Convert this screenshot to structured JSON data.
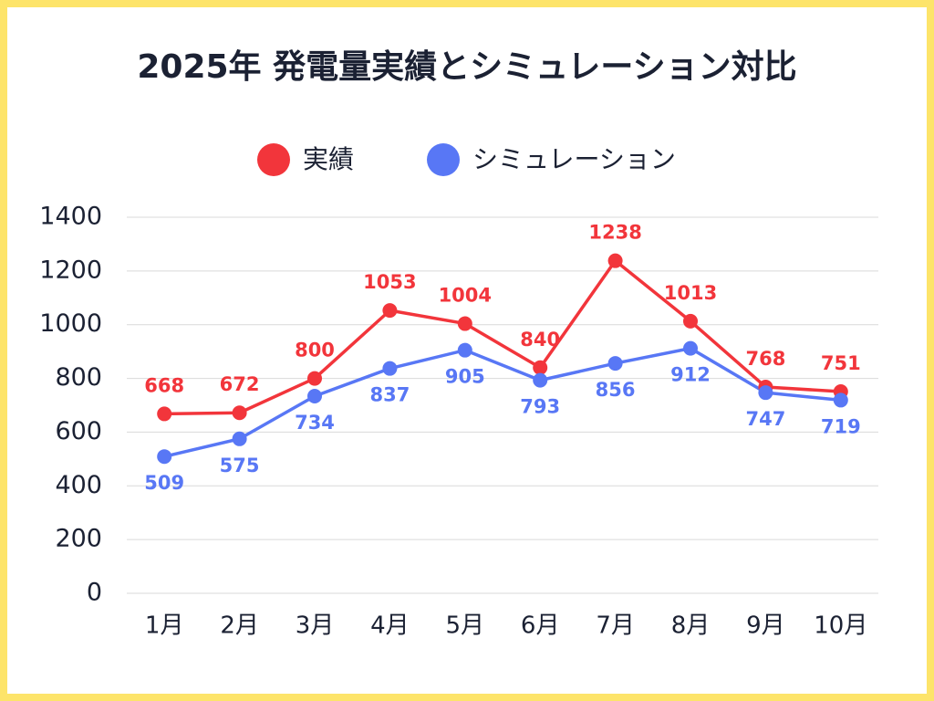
{
  "chart_data": {
    "type": "line",
    "title": "2025年 発電量実績とシミュレーション対比",
    "categories": [
      "1月",
      "2月",
      "3月",
      "4月",
      "5月",
      "6月",
      "7月",
      "8月",
      "9月",
      "10月"
    ],
    "series": [
      {
        "name": "実績",
        "color": "#f2353b",
        "values": [
          668,
          672,
          800,
          1053,
          1004,
          840,
          1238,
          1013,
          768,
          751
        ]
      },
      {
        "name": "シミュレーション",
        "color": "#5877f5",
        "values": [
          509,
          575,
          734,
          837,
          905,
          793,
          856,
          912,
          747,
          719
        ]
      }
    ],
    "ylim": [
      0,
      1400
    ],
    "yticks": [
      0,
      200,
      400,
      600,
      800,
      1000,
      1200,
      1400
    ],
    "grid": true,
    "legend": "top"
  }
}
